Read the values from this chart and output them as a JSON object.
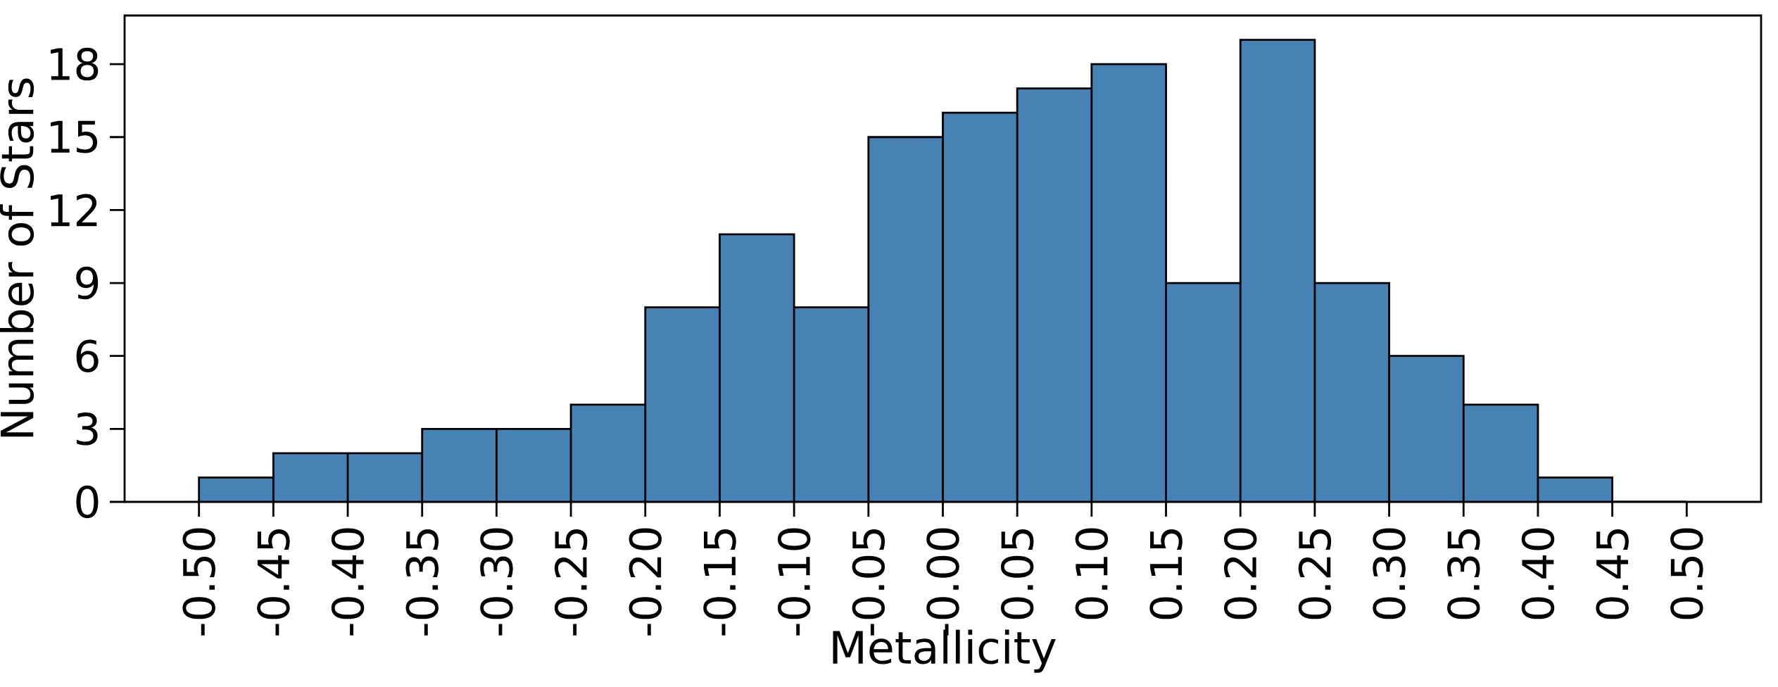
{
  "chart_data": {
    "type": "histogram",
    "xlabel": "Metallicity",
    "ylabel": "Number of Stars",
    "bins": [
      -0.5,
      -0.45,
      -0.4,
      -0.35,
      -0.3,
      -0.25,
      -0.2,
      -0.15,
      -0.1,
      -0.05,
      0.0,
      0.05,
      0.1,
      0.15,
      0.2,
      0.25,
      0.3,
      0.35,
      0.4,
      0.45,
      0.5
    ],
    "values": [
      1,
      2,
      2,
      3,
      3,
      4,
      8,
      11,
      8,
      15,
      16,
      17,
      18,
      9,
      19,
      9,
      6,
      4,
      1,
      0
    ],
    "color": "#4682b4",
    "xlim": [
      -0.55,
      0.55
    ],
    "ylim": [
      0,
      20
    ],
    "xticks": [
      {
        "value": -0.5,
        "label": "-0.50"
      },
      {
        "value": -0.45,
        "label": "-0.45"
      },
      {
        "value": -0.4,
        "label": "-0.40"
      },
      {
        "value": -0.35,
        "label": "-0.35"
      },
      {
        "value": -0.3,
        "label": "-0.30"
      },
      {
        "value": -0.25,
        "label": "-0.25"
      },
      {
        "value": -0.2,
        "label": "-0.20"
      },
      {
        "value": -0.15,
        "label": "-0.15"
      },
      {
        "value": -0.1,
        "label": "-0.10"
      },
      {
        "value": -0.05,
        "label": "-0.05"
      },
      {
        "value": 0.0,
        "label": "-0.00"
      },
      {
        "value": 0.05,
        "label": "0.05"
      },
      {
        "value": 0.1,
        "label": "0.10"
      },
      {
        "value": 0.15,
        "label": "0.15"
      },
      {
        "value": 0.2,
        "label": "0.20"
      },
      {
        "value": 0.25,
        "label": "0.25"
      },
      {
        "value": 0.3,
        "label": "0.30"
      },
      {
        "value": 0.35,
        "label": "0.35"
      },
      {
        "value": 0.4,
        "label": "0.40"
      },
      {
        "value": 0.45,
        "label": "0.45"
      },
      {
        "value": 0.5,
        "label": "0.50"
      }
    ],
    "yticks": [
      0,
      3,
      6,
      9,
      12,
      15,
      18
    ]
  }
}
